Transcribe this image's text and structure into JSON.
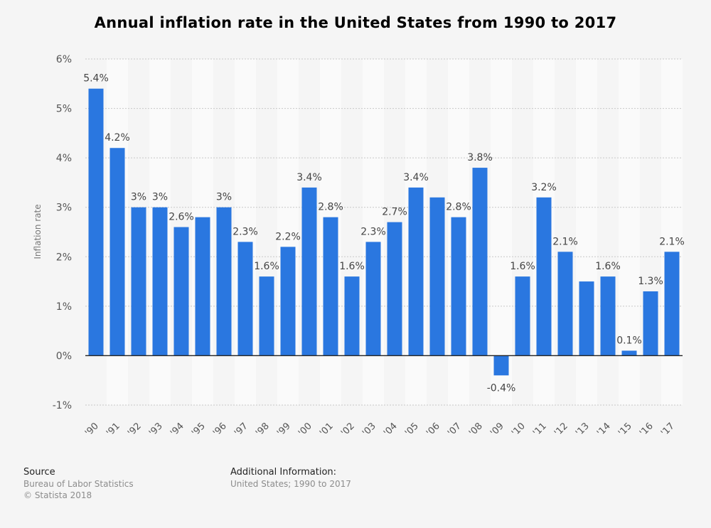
{
  "chart_data": {
    "type": "bar",
    "title": "Annual inflation rate in the United States from 1990 to 2017",
    "ylabel": "Inflation rate",
    "xlabel": "",
    "ylim": [
      -1,
      6
    ],
    "yticks": [
      "-1%",
      "0%",
      "1%",
      "2%",
      "3%",
      "4%",
      "5%",
      "6%"
    ],
    "grid": true,
    "bar_color": "#2a77e0",
    "categories": [
      "'90",
      "'91",
      "'92",
      "'93",
      "'94",
      "'95",
      "'96",
      "'97",
      "'98",
      "'99",
      "'00",
      "'01",
      "'02",
      "'03",
      "'04",
      "'05",
      "'06",
      "'07",
      "'08",
      "'09",
      "'10",
      "'11",
      "'12",
      "'13",
      "'14",
      "'15",
      "'16",
      "'17"
    ],
    "values": [
      5.4,
      4.2,
      3.0,
      3.0,
      2.6,
      2.8,
      3.0,
      2.3,
      1.6,
      2.2,
      3.4,
      2.8,
      1.6,
      2.3,
      2.7,
      3.4,
      3.2,
      2.8,
      3.8,
      -0.4,
      1.6,
      3.2,
      2.1,
      1.5,
      1.6,
      0.1,
      1.3,
      2.1
    ],
    "data_labels": [
      "5.4%",
      "4.2%",
      "3%",
      "3%",
      "2.6%",
      "",
      "3%",
      "2.3%",
      "1.6%",
      "2.2%",
      "3.4%",
      "2.8%",
      "1.6%",
      "2.3%",
      "2.7%",
      "3.4%",
      "",
      "2.8%",
      "3.8%",
      "-0.4%",
      "1.6%",
      "3.2%",
      "2.1%",
      "",
      "1.6%",
      "0.1%",
      "1.3%",
      "2.1%"
    ]
  },
  "footer": {
    "source_heading": "Source",
    "source_lines": [
      "Bureau of Labor Statistics",
      "© Statista 2018"
    ],
    "info_heading": "Additional Information:",
    "info_line": "United States; 1990 to 2017"
  }
}
